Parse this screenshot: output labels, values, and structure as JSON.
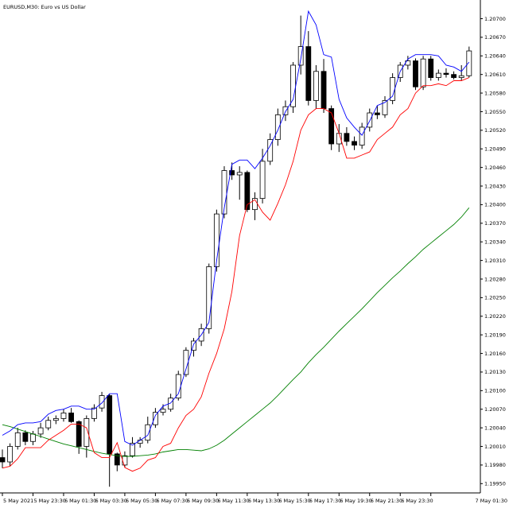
{
  "chart_data": {
    "type": "candlestick",
    "title": "EURUSD,M30:  Euro vs US Dollar",
    "price_axis": {
      "ylim": [
        1.19935,
        1.20725
      ],
      "ticks": [
        "1.20700",
        "1.20670",
        "1.20640",
        "1.20610",
        "1.20580",
        "1.20550",
        "1.20520",
        "1.20490",
        "1.20460",
        "1.20430",
        "1.20400",
        "1.20370",
        "1.20340",
        "1.20310",
        "1.20280",
        "1.20250",
        "1.20220",
        "1.20190",
        "1.20160",
        "1.20130",
        "1.20100",
        "1.20070",
        "1.20040",
        "1.20010",
        "1.19980",
        "1.19950"
      ]
    },
    "time_axis": {
      "labels": [
        "5 May 2021",
        "5 May 23:30",
        "6 May 01:30",
        "6 May 03:30",
        "6 May 05:30",
        "6 May 07:30",
        "6 May 09:30",
        "6 May 11:30",
        "6 May 13:30",
        "6 May 15:30",
        "6 May 17:30",
        "6 May 19:30",
        "6 May 21:30",
        "6 May 23:30",
        "7 May 01:30"
      ],
      "label_positions": [
        0,
        4,
        8,
        12,
        16,
        20,
        24,
        28,
        32,
        36,
        40,
        44,
        48,
        52,
        56
      ]
    },
    "candles": [
      {
        "o": 1.19992,
        "h": 1.20005,
        "l": 1.19975,
        "c": 1.19985
      },
      {
        "o": 1.19985,
        "h": 1.20015,
        "l": 1.19978,
        "c": 1.2001
      },
      {
        "o": 1.2001,
        "h": 1.2004,
        "l": 1.20005,
        "c": 1.20032
      },
      {
        "o": 1.20032,
        "h": 1.20036,
        "l": 1.20012,
        "c": 1.20018
      },
      {
        "o": 1.20018,
        "h": 1.20035,
        "l": 1.20012,
        "c": 1.2003
      },
      {
        "o": 1.2003,
        "h": 1.20048,
        "l": 1.20024,
        "c": 1.2004
      },
      {
        "o": 1.2004,
        "h": 1.20058,
        "l": 1.20036,
        "c": 1.20052
      },
      {
        "o": 1.20052,
        "h": 1.2006,
        "l": 1.20046,
        "c": 1.20055
      },
      {
        "o": 1.20055,
        "h": 1.2007,
        "l": 1.2005,
        "c": 1.20064
      },
      {
        "o": 1.20064,
        "h": 1.20072,
        "l": 1.20048,
        "c": 1.2005
      },
      {
        "o": 1.2005,
        "h": 1.20052,
        "l": 1.19998,
        "c": 1.2001
      },
      {
        "o": 1.2001,
        "h": 1.2006,
        "l": 1.19992,
        "c": 1.20055
      },
      {
        "o": 1.20055,
        "h": 1.20078,
        "l": 1.2005,
        "c": 1.20072
      },
      {
        "o": 1.20072,
        "h": 1.20098,
        "l": 1.20066,
        "c": 1.20092
      },
      {
        "o": 1.20092,
        "h": 1.20094,
        "l": 1.19945,
        "c": 1.19998
      },
      {
        "o": 1.19998,
        "h": 1.2,
        "l": 1.1997,
        "c": 1.1998
      },
      {
        "o": 1.1998,
        "h": 1.20002,
        "l": 1.19976,
        "c": 1.19995
      },
      {
        "o": 1.19995,
        "h": 1.20025,
        "l": 1.19992,
        "c": 1.20015
      },
      {
        "o": 1.20015,
        "h": 1.20025,
        "l": 1.20008,
        "c": 1.2002
      },
      {
        "o": 1.2002,
        "h": 1.20058,
        "l": 1.20015,
        "c": 1.20045
      },
      {
        "o": 1.20045,
        "h": 1.20072,
        "l": 1.2004,
        "c": 1.20065
      },
      {
        "o": 1.20065,
        "h": 1.20078,
        "l": 1.2006,
        "c": 1.2007
      },
      {
        "o": 1.2007,
        "h": 1.20095,
        "l": 1.20066,
        "c": 1.20088
      },
      {
        "o": 1.20088,
        "h": 1.20132,
        "l": 1.20084,
        "c": 1.20126
      },
      {
        "o": 1.20126,
        "h": 1.2017,
        "l": 1.20122,
        "c": 1.20165
      },
      {
        "o": 1.20165,
        "h": 1.20185,
        "l": 1.20155,
        "c": 1.2018
      },
      {
        "o": 1.2018,
        "h": 1.20208,
        "l": 1.20172,
        "c": 1.202
      },
      {
        "o": 1.202,
        "h": 1.20305,
        "l": 1.20192,
        "c": 1.203
      },
      {
        "o": 1.203,
        "h": 1.20392,
        "l": 1.20292,
        "c": 1.20385
      },
      {
        "o": 1.20385,
        "h": 1.20462,
        "l": 1.20378,
        "c": 1.20455
      },
      {
        "o": 1.20455,
        "h": 1.20468,
        "l": 1.2044,
        "c": 1.20448
      },
      {
        "o": 1.20448,
        "h": 1.20462,
        "l": 1.20408,
        "c": 1.20452
      },
      {
        "o": 1.20452,
        "h": 1.20455,
        "l": 1.20388,
        "c": 1.20392
      },
      {
        "o": 1.20392,
        "h": 1.2042,
        "l": 1.20375,
        "c": 1.2041
      },
      {
        "o": 1.2041,
        "h": 1.2049,
        "l": 1.20402,
        "c": 1.2047
      },
      {
        "o": 1.2047,
        "h": 1.20515,
        "l": 1.20464,
        "c": 1.20505
      },
      {
        "o": 1.20505,
        "h": 1.20555,
        "l": 1.20495,
        "c": 1.20545
      },
      {
        "o": 1.20545,
        "h": 1.20568,
        "l": 1.20535,
        "c": 1.20558
      },
      {
        "o": 1.20558,
        "h": 1.2063,
        "l": 1.20548,
        "c": 1.20625
      },
      {
        "o": 1.20625,
        "h": 1.20705,
        "l": 1.2061,
        "c": 1.20655
      },
      {
        "o": 1.20655,
        "h": 1.2068,
        "l": 1.2056,
        "c": 1.20568
      },
      {
        "o": 1.20568,
        "h": 1.20625,
        "l": 1.20555,
        "c": 1.20615
      },
      {
        "o": 1.20615,
        "h": 1.20635,
        "l": 1.20548,
        "c": 1.20555
      },
      {
        "o": 1.20555,
        "h": 1.2056,
        "l": 1.20488,
        "c": 1.20498
      },
      {
        "o": 1.20498,
        "h": 1.2053,
        "l": 1.20485,
        "c": 1.20515
      },
      {
        "o": 1.20515,
        "h": 1.20525,
        "l": 1.20495,
        "c": 1.20502
      },
      {
        "o": 1.20502,
        "h": 1.2051,
        "l": 1.20488,
        "c": 1.20496
      },
      {
        "o": 1.20496,
        "h": 1.20532,
        "l": 1.2049,
        "c": 1.20525
      },
      {
        "o": 1.20525,
        "h": 1.20555,
        "l": 1.20518,
        "c": 1.20548
      },
      {
        "o": 1.20548,
        "h": 1.2056,
        "l": 1.20538,
        "c": 1.20545
      },
      {
        "o": 1.20545,
        "h": 1.20575,
        "l": 1.2054,
        "c": 1.20568
      },
      {
        "o": 1.20568,
        "h": 1.20612,
        "l": 1.20562,
        "c": 1.20605
      },
      {
        "o": 1.20605,
        "h": 1.2063,
        "l": 1.20598,
        "c": 1.20625
      },
      {
        "o": 1.20625,
        "h": 1.2064,
        "l": 1.20618,
        "c": 1.20632
      },
      {
        "o": 1.20632,
        "h": 1.20636,
        "l": 1.20585,
        "c": 1.2059
      },
      {
        "o": 1.2059,
        "h": 1.2064,
        "l": 1.20585,
        "c": 1.20635
      },
      {
        "o": 1.20635,
        "h": 1.2064,
        "l": 1.206,
        "c": 1.20605
      },
      {
        "o": 1.20605,
        "h": 1.20618,
        "l": 1.206,
        "c": 1.20612
      },
      {
        "o": 1.20612,
        "h": 1.2062,
        "l": 1.20605,
        "c": 1.2061
      },
      {
        "o": 1.2061,
        "h": 1.20615,
        "l": 1.20602,
        "c": 1.20605
      },
      {
        "o": 1.20605,
        "h": 1.20625,
        "l": 1.206,
        "c": 1.20608
      },
      {
        "o": 1.20608,
        "h": 1.20655,
        "l": 1.20605,
        "c": 1.20648
      }
    ],
    "blue_line": [
      1.20028,
      1.20035,
      1.20045,
      1.20048,
      1.20048,
      1.2005,
      1.20062,
      1.20068,
      1.2007,
      1.20075,
      1.20075,
      1.2007,
      1.2007,
      1.2008,
      1.20095,
      1.20095,
      1.20018,
      1.20012,
      1.2002,
      1.20028,
      1.2006,
      1.20075,
      1.2008,
      1.20095,
      1.20135,
      1.20175,
      1.2019,
      1.2021,
      1.2031,
      1.20395,
      1.20465,
      1.20472,
      1.20472,
      1.20458,
      1.20475,
      1.20495,
      1.2052,
      1.2055,
      1.2057,
      1.20635,
      1.20712,
      1.2069,
      1.20642,
      1.20638,
      1.2057,
      1.2054,
      1.20525,
      1.20512,
      1.20535,
      1.2056,
      1.20565,
      1.20575,
      1.20615,
      1.20635,
      1.20642,
      1.20642,
      1.20642,
      1.2064,
      1.20625,
      1.20622,
      1.20615,
      1.2063
    ],
    "red_line": [
      1.19975,
      1.19978,
      1.1999,
      1.20008,
      1.20008,
      1.20008,
      1.2002,
      1.20028,
      1.20036,
      1.20046,
      1.20046,
      1.2004,
      1.2,
      1.19992,
      1.19992,
      1.20016,
      1.19976,
      1.1997,
      1.19975,
      1.19988,
      1.19992,
      1.2001,
      1.20015,
      1.2004,
      1.2006,
      1.2007,
      1.2009,
      1.20128,
      1.2016,
      1.202,
      1.2026,
      1.2035,
      1.204,
      1.20408,
      1.20388,
      1.20375,
      1.20402,
      1.20432,
      1.2047,
      1.2052,
      1.20545,
      1.20555,
      1.20555,
      1.20548,
      1.20515,
      1.20475,
      1.20475,
      1.2048,
      1.20485,
      1.20505,
      1.20515,
      1.20525,
      1.20545,
      1.20555,
      1.2058,
      1.20592,
      1.20592,
      1.20595,
      1.20592,
      1.206,
      1.206,
      1.20605
    ],
    "green_line": [
      1.20045,
      1.20042,
      1.20038,
      1.20034,
      1.2003,
      1.20026,
      1.20022,
      1.20018,
      1.20014,
      1.20011,
      1.20008,
      1.20005,
      1.20002,
      1.19999,
      1.19997,
      1.19995,
      1.19994,
      1.19994,
      1.19995,
      1.19996,
      1.19998,
      1.20001,
      1.20003,
      1.20005,
      1.20005,
      1.20004,
      1.20003,
      1.20006,
      1.20012,
      1.2002,
      1.2003,
      1.2004,
      1.2005,
      1.2006,
      1.2007,
      1.2008,
      1.20092,
      1.20105,
      1.20118,
      1.2013,
      1.20145,
      1.20158,
      1.2017,
      1.20183,
      1.20196,
      1.20208,
      1.2022,
      1.20232,
      1.20245,
      1.20258,
      1.2027,
      1.20282,
      1.20293,
      1.20305,
      1.20316,
      1.20328,
      1.20338,
      1.20348,
      1.20358,
      1.20368,
      1.2038,
      1.20395
    ],
    "colors": {
      "bull_body": "#ffffff",
      "bear_body": "#000000",
      "candle_outline": "#000000",
      "blue_line": "#0000ff",
      "red_line": "#ff0000",
      "green_line": "#008000",
      "axis": "#000000",
      "background": "#ffffff"
    }
  }
}
